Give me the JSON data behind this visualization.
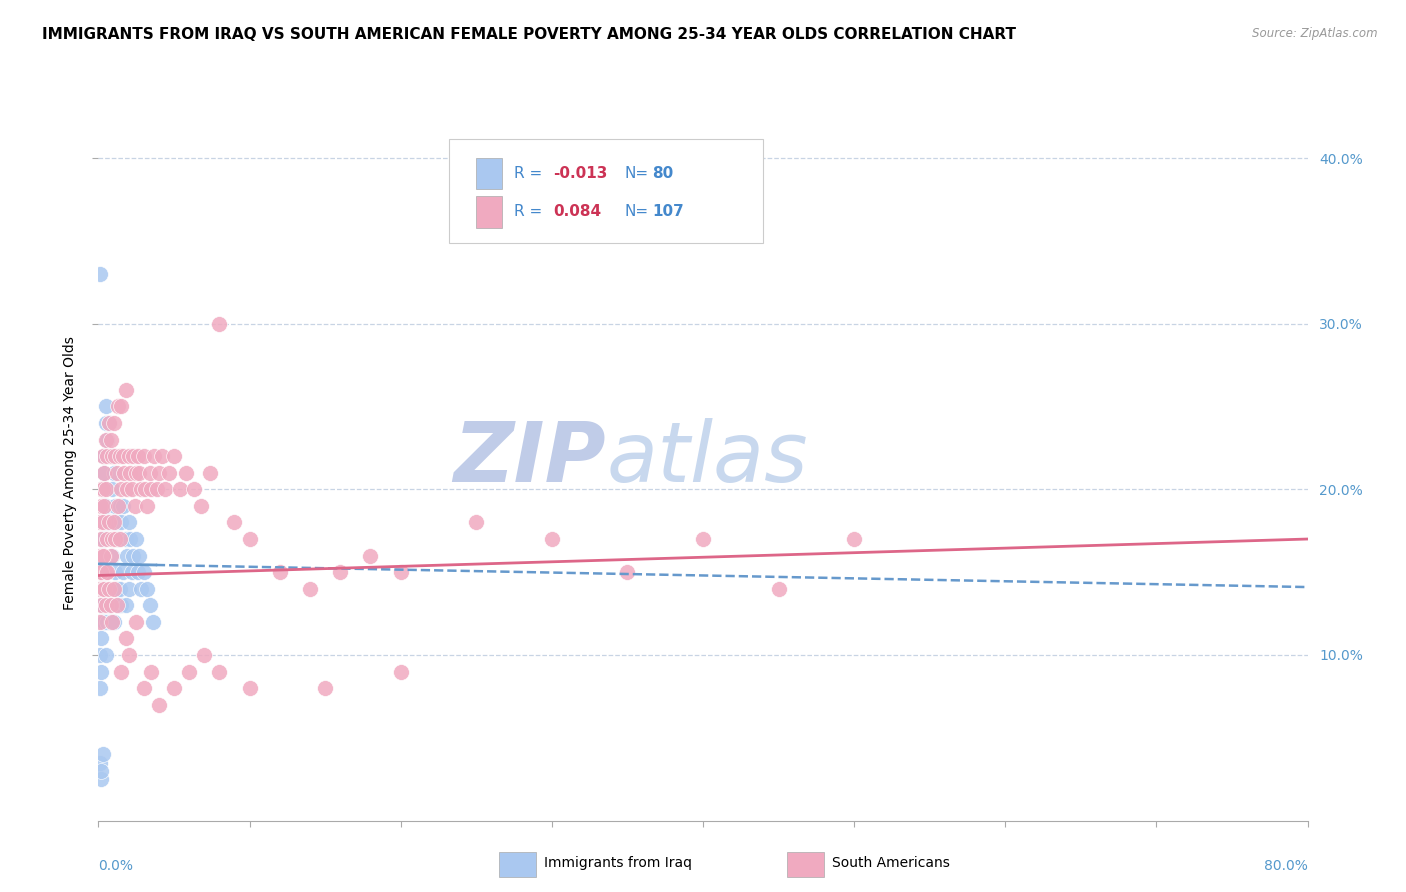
{
  "title": "IMMIGRANTS FROM IRAQ VS SOUTH AMERICAN FEMALE POVERTY AMONG 25-34 YEAR OLDS CORRELATION CHART",
  "source": "Source: ZipAtlas.com",
  "ylabel": "Female Poverty Among 25-34 Year Olds",
  "xlim": [
    0,
    0.8
  ],
  "ylim": [
    0,
    0.42
  ],
  "yticks_right": [
    0.1,
    0.2,
    0.3,
    0.4
  ],
  "ytick_labels_right": [
    "10.0%",
    "20.0%",
    "30.0%",
    "40.0%"
  ],
  "xticks": [
    0.0,
    0.1,
    0.2,
    0.3,
    0.4,
    0.5,
    0.6,
    0.7,
    0.8
  ],
  "series": [
    {
      "label": "Immigrants from Iraq",
      "R": -0.013,
      "N": 80,
      "color": "#aac8f0",
      "trend_color": "#6699cc",
      "trend_style": "--"
    },
    {
      "label": "South Americans",
      "R": 0.084,
      "N": 107,
      "color": "#f0aac0",
      "trend_color": "#dd6688",
      "trend_style": "-"
    }
  ],
  "legend_R1": "-0.013",
  "legend_N1": "80",
  "legend_R2": "0.084",
  "legend_N2": "107",
  "watermark_zip": "ZIP",
  "watermark_atlas": "atlas",
  "watermark_color_zip": "#c0cce8",
  "watermark_color_atlas": "#c8d8ee",
  "background_color": "#ffffff",
  "grid_color": "#c8d4e4",
  "title_fontsize": 11,
  "axis_label_fontsize": 10,
  "tick_fontsize": 10,
  "legend_fontsize": 11,
  "iraq_x": [
    0.001,
    0.001,
    0.001,
    0.001,
    0.001,
    0.002,
    0.002,
    0.002,
    0.002,
    0.002,
    0.002,
    0.002,
    0.002,
    0.003,
    0.003,
    0.003,
    0.003,
    0.003,
    0.003,
    0.003,
    0.003,
    0.003,
    0.004,
    0.004,
    0.004,
    0.004,
    0.004,
    0.004,
    0.004,
    0.005,
    0.005,
    0.005,
    0.005,
    0.005,
    0.006,
    0.006,
    0.006,
    0.007,
    0.007,
    0.007,
    0.008,
    0.008,
    0.008,
    0.009,
    0.009,
    0.01,
    0.01,
    0.01,
    0.011,
    0.011,
    0.012,
    0.012,
    0.013,
    0.013,
    0.014,
    0.014,
    0.015,
    0.015,
    0.016,
    0.016,
    0.018,
    0.018,
    0.019,
    0.02,
    0.02,
    0.021,
    0.022,
    0.023,
    0.025,
    0.026,
    0.027,
    0.028,
    0.03,
    0.032,
    0.034,
    0.036,
    0.001,
    0.002,
    0.003,
    0.002
  ],
  "iraq_y": [
    0.33,
    0.12,
    0.14,
    0.08,
    0.1,
    0.17,
    0.16,
    0.15,
    0.14,
    0.13,
    0.12,
    0.11,
    0.09,
    0.2,
    0.19,
    0.18,
    0.17,
    0.16,
    0.15,
    0.14,
    0.13,
    0.12,
    0.22,
    0.21,
    0.2,
    0.19,
    0.17,
    0.14,
    0.12,
    0.25,
    0.24,
    0.19,
    0.18,
    0.1,
    0.23,
    0.18,
    0.12,
    0.24,
    0.18,
    0.13,
    0.22,
    0.18,
    0.12,
    0.2,
    0.16,
    0.21,
    0.18,
    0.12,
    0.19,
    0.15,
    0.18,
    0.14,
    0.17,
    0.13,
    0.19,
    0.14,
    0.18,
    0.13,
    0.19,
    0.15,
    0.17,
    0.13,
    0.16,
    0.18,
    0.14,
    0.17,
    0.15,
    0.16,
    0.17,
    0.15,
    0.16,
    0.14,
    0.15,
    0.14,
    0.13,
    0.12,
    0.035,
    0.025,
    0.04,
    0.03
  ],
  "sa_x": [
    0.001,
    0.001,
    0.001,
    0.001,
    0.001,
    0.002,
    0.002,
    0.002,
    0.002,
    0.002,
    0.003,
    0.003,
    0.003,
    0.003,
    0.004,
    0.004,
    0.004,
    0.005,
    0.005,
    0.005,
    0.006,
    0.006,
    0.007,
    0.007,
    0.008,
    0.008,
    0.009,
    0.009,
    0.01,
    0.01,
    0.011,
    0.011,
    0.012,
    0.013,
    0.013,
    0.014,
    0.014,
    0.015,
    0.015,
    0.016,
    0.017,
    0.018,
    0.019,
    0.02,
    0.021,
    0.022,
    0.023,
    0.024,
    0.025,
    0.026,
    0.027,
    0.028,
    0.03,
    0.031,
    0.032,
    0.034,
    0.035,
    0.037,
    0.039,
    0.04,
    0.042,
    0.044,
    0.047,
    0.05,
    0.054,
    0.058,
    0.063,
    0.068,
    0.074,
    0.08,
    0.09,
    0.1,
    0.12,
    0.14,
    0.16,
    0.18,
    0.2,
    0.25,
    0.3,
    0.35,
    0.4,
    0.45,
    0.5,
    0.002,
    0.003,
    0.004,
    0.005,
    0.006,
    0.007,
    0.008,
    0.009,
    0.01,
    0.012,
    0.015,
    0.018,
    0.02,
    0.025,
    0.03,
    0.035,
    0.04,
    0.05,
    0.06,
    0.07,
    0.08,
    0.1,
    0.15,
    0.2
  ],
  "sa_y": [
    0.18,
    0.16,
    0.15,
    0.14,
    0.12,
    0.2,
    0.19,
    0.17,
    0.15,
    0.13,
    0.22,
    0.2,
    0.18,
    0.14,
    0.21,
    0.19,
    0.16,
    0.23,
    0.2,
    0.15,
    0.22,
    0.17,
    0.24,
    0.18,
    0.23,
    0.16,
    0.22,
    0.17,
    0.24,
    0.18,
    0.22,
    0.17,
    0.21,
    0.25,
    0.19,
    0.22,
    0.17,
    0.25,
    0.2,
    0.22,
    0.21,
    0.26,
    0.2,
    0.22,
    0.21,
    0.2,
    0.22,
    0.19,
    0.21,
    0.22,
    0.21,
    0.2,
    0.22,
    0.2,
    0.19,
    0.21,
    0.2,
    0.22,
    0.2,
    0.21,
    0.22,
    0.2,
    0.21,
    0.22,
    0.2,
    0.21,
    0.2,
    0.19,
    0.21,
    0.3,
    0.18,
    0.17,
    0.15,
    0.14,
    0.15,
    0.16,
    0.15,
    0.18,
    0.17,
    0.15,
    0.17,
    0.14,
    0.17,
    0.15,
    0.16,
    0.14,
    0.13,
    0.15,
    0.14,
    0.13,
    0.12,
    0.14,
    0.13,
    0.09,
    0.11,
    0.1,
    0.12,
    0.08,
    0.09,
    0.07,
    0.08,
    0.09,
    0.1,
    0.09,
    0.08,
    0.08,
    0.09
  ]
}
